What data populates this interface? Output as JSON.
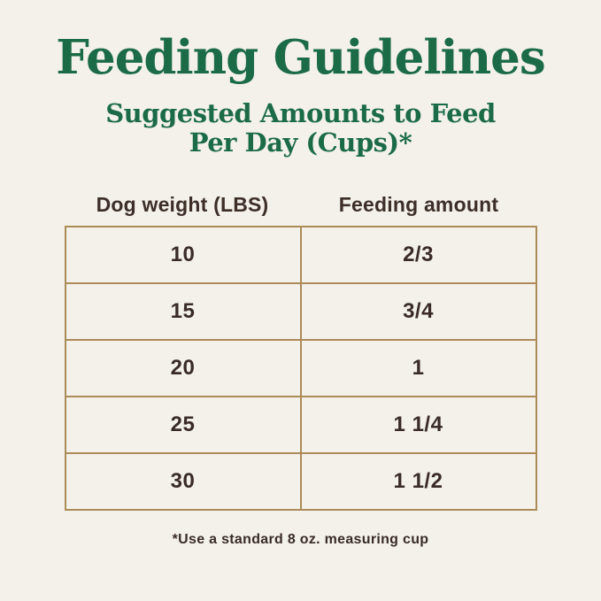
{
  "colors": {
    "background": "#f3f1ea",
    "title_green": "#1c6b47",
    "table_border": "#ad8b58",
    "text_dark": "#3a2b26"
  },
  "header": {
    "title": "Feeding Guidelines",
    "subtitle_line1": "Suggested Amounts to Feed",
    "subtitle_line2": "Per Day (Cups)*"
  },
  "table": {
    "columns": [
      "Dog weight (LBS)",
      "Feeding amount"
    ],
    "rows": [
      {
        "weight": "10",
        "amount": "2/3"
      },
      {
        "weight": "15",
        "amount": "3/4"
      },
      {
        "weight": "20",
        "amount": "1"
      },
      {
        "weight": "25",
        "amount": "1 1/4"
      },
      {
        "weight": "30",
        "amount": "1 1/2"
      }
    ]
  },
  "footnote": "*Use a standard 8 oz. measuring cup",
  "chart_data": {
    "type": "table",
    "title": "Feeding Guidelines",
    "subtitle": "Suggested Amounts to Feed Per Day (Cups)*",
    "columns": [
      "Dog weight (LBS)",
      "Feeding amount"
    ],
    "rows": [
      [
        "10",
        "2/3"
      ],
      [
        "15",
        "3/4"
      ],
      [
        "20",
        "1"
      ],
      [
        "25",
        "1 1/4"
      ],
      [
        "30",
        "1 1/2"
      ]
    ],
    "footnote": "*Use a standard 8 oz. measuring cup",
    "layout": "two-column centered table, header labels above bordered grid",
    "grid": true
  }
}
